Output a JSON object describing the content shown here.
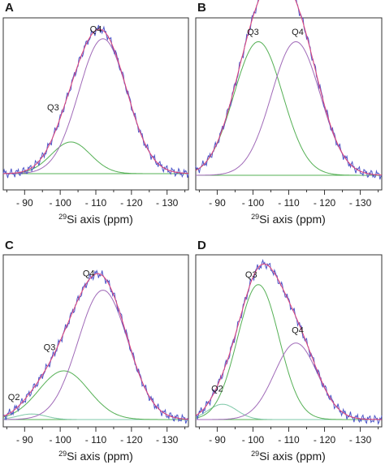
{
  "colors": {
    "experimental": "#4d55c8",
    "fit_total": "#e0457a",
    "q4_component": "#a06ab8",
    "q3_component": "#55b055",
    "q2_component": "#7fc8a8",
    "frame": "#333333"
  },
  "chart_data": [
    {
      "panel": "A",
      "type": "line",
      "xlabel_sup": "29",
      "xlabel": "Si axis (ppm)",
      "xlim": [
        -84,
        -136
      ],
      "x_direction": "reversed",
      "x_ticks": [
        -90,
        -100,
        -110,
        -120,
        -130
      ],
      "x_tick_labels": [
        "- 90",
        "- 100",
        "- 110",
        "- 120",
        "- 130"
      ],
      "ylim": [
        0,
        1.12
      ],
      "peaks": [
        {
          "label": "Q3",
          "center": -103,
          "height": 0.23,
          "width": 5.5
        },
        {
          "label": "Q4",
          "center": -112,
          "height": 0.98,
          "width": 6.8
        }
      ],
      "peak_labels": [
        {
          "text": "Q4",
          "x": -110,
          "y": 1.03
        },
        {
          "text": "Q3",
          "x": -98,
          "y": 0.46
        }
      ]
    },
    {
      "panel": "B",
      "type": "line",
      "xlabel_sup": "29",
      "xlabel": "Si axis (ppm)",
      "xlim": [
        -84,
        -136
      ],
      "x_direction": "reversed",
      "x_ticks": [
        -90,
        -100,
        -110,
        -120,
        -130
      ],
      "x_tick_labels": [
        "- 90",
        "- 100",
        "- 110",
        "- 120",
        "- 130"
      ],
      "ylim": [
        0,
        1.12
      ],
      "peaks": [
        {
          "label": "Q3",
          "center": -101.5,
          "height": 0.96,
          "width": 6.8
        },
        {
          "label": "Q4",
          "center": -112,
          "height": 0.96,
          "width": 6.8
        }
      ],
      "peak_labels": [
        {
          "text": "Q3",
          "x": -100,
          "y": 1.01
        },
        {
          "text": "Q4",
          "x": -112.5,
          "y": 1.01
        }
      ]
    },
    {
      "panel": "C",
      "type": "line",
      "xlabel_sup": "29",
      "xlabel": "Si axis (ppm)",
      "xlim": [
        -84,
        -136
      ],
      "x_direction": "reversed",
      "x_ticks": [
        -90,
        -100,
        -110,
        -120,
        -130
      ],
      "x_tick_labels": [
        "- 90",
        "- 100",
        "- 110",
        "- 120",
        "- 130"
      ],
      "ylim": [
        0,
        1.12
      ],
      "peaks": [
        {
          "label": "Q2",
          "center": -92,
          "height": 0.04,
          "width": 4
        },
        {
          "label": "Q3",
          "center": -101,
          "height": 0.35,
          "width": 7
        },
        {
          "label": "Q4",
          "center": -112,
          "height": 0.93,
          "width": 7
        }
      ],
      "peak_labels": [
        {
          "text": "Q4",
          "x": -108,
          "y": 1.03
        },
        {
          "text": "Q3",
          "x": -97,
          "y": 0.5
        },
        {
          "text": "Q2",
          "x": -87,
          "y": 0.14
        }
      ]
    },
    {
      "panel": "D",
      "type": "line",
      "xlabel_sup": "29",
      "xlabel": "Si axis (ppm)",
      "xlim": [
        -84,
        -136
      ],
      "x_direction": "reversed",
      "x_ticks": [
        -90,
        -100,
        -110,
        -120,
        -130
      ],
      "x_tick_labels": [
        "- 90",
        "- 100",
        "- 110",
        "- 120",
        "- 130"
      ],
      "ylim": [
        0,
        1.12
      ],
      "peaks": [
        {
          "label": "Q2",
          "center": -91.5,
          "height": 0.11,
          "width": 4
        },
        {
          "label": "Q3",
          "center": -101.5,
          "height": 0.97,
          "width": 5.8
        },
        {
          "label": "Q4",
          "center": -112,
          "height": 0.55,
          "width": 6
        }
      ],
      "peak_labels": [
        {
          "text": "Q3",
          "x": -99.5,
          "y": 1.02
        },
        {
          "text": "Q4",
          "x": -112.5,
          "y": 0.62
        },
        {
          "text": "Q2",
          "x": -90,
          "y": 0.2
        }
      ]
    }
  ]
}
